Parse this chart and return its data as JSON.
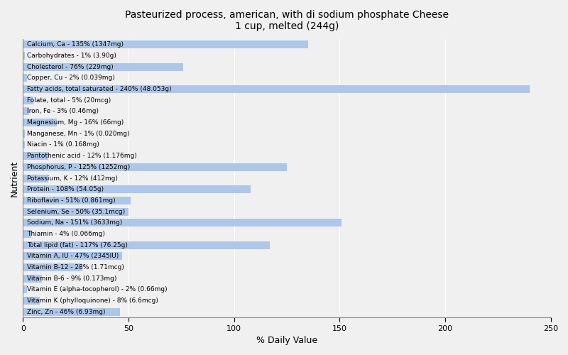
{
  "title": "Pasteurized process, american, with di sodium phosphate Cheese\n1 cup, melted (244g)",
  "xlabel": "% Daily Value",
  "ylabel": "Nutrient",
  "bar_color": "#aec6e8",
  "background_color": "#f0f0f0",
  "plot_bg_color": "#f0f0f0",
  "xlim": [
    0,
    250
  ],
  "xticks": [
    0,
    50,
    100,
    150,
    200,
    250
  ],
  "nutrients": [
    {
      "label": "Calcium, Ca - 135% (1347mg)",
      "value": 135
    },
    {
      "label": "Carbohydrates - 1% (3.90g)",
      "value": 1
    },
    {
      "label": "Cholesterol - 76% (229mg)",
      "value": 76
    },
    {
      "label": "Copper, Cu - 2% (0.039mg)",
      "value": 2
    },
    {
      "label": "Fatty acids, total saturated - 240% (48.053g)",
      "value": 240
    },
    {
      "label": "Folate, total - 5% (20mcg)",
      "value": 5
    },
    {
      "label": "Iron, Fe - 3% (0.46mg)",
      "value": 3
    },
    {
      "label": "Magnesium, Mg - 16% (66mg)",
      "value": 16
    },
    {
      "label": "Manganese, Mn - 1% (0.020mg)",
      "value": 1
    },
    {
      "label": "Niacin - 1% (0.168mg)",
      "value": 1
    },
    {
      "label": "Pantothenic acid - 12% (1.176mg)",
      "value": 12
    },
    {
      "label": "Phosphorus, P - 125% (1252mg)",
      "value": 125
    },
    {
      "label": "Potassium, K - 12% (412mg)",
      "value": 12
    },
    {
      "label": "Protein - 108% (54.05g)",
      "value": 108
    },
    {
      "label": "Riboflavin - 51% (0.861mg)",
      "value": 51
    },
    {
      "label": "Selenium, Se - 50% (35.1mcg)",
      "value": 50
    },
    {
      "label": "Sodium, Na - 151% (3633mg)",
      "value": 151
    },
    {
      "label": "Thiamin - 4% (0.066mg)",
      "value": 4
    },
    {
      "label": "Total lipid (fat) - 117% (76.25g)",
      "value": 117
    },
    {
      "label": "Vitamin A, IU - 47% (2345IU)",
      "value": 47
    },
    {
      "label": "Vitamin B-12 - 28% (1.71mcg)",
      "value": 28
    },
    {
      "label": "Vitamin B-6 - 9% (0.173mg)",
      "value": 9
    },
    {
      "label": "Vitamin E (alpha-tocopherol) - 2% (0.66mg)",
      "value": 2
    },
    {
      "label": "Vitamin K (phylloquinone) - 8% (6.6mcg)",
      "value": 8
    },
    {
      "label": "Zinc, Zn - 46% (6.93mg)",
      "value": 46
    }
  ]
}
